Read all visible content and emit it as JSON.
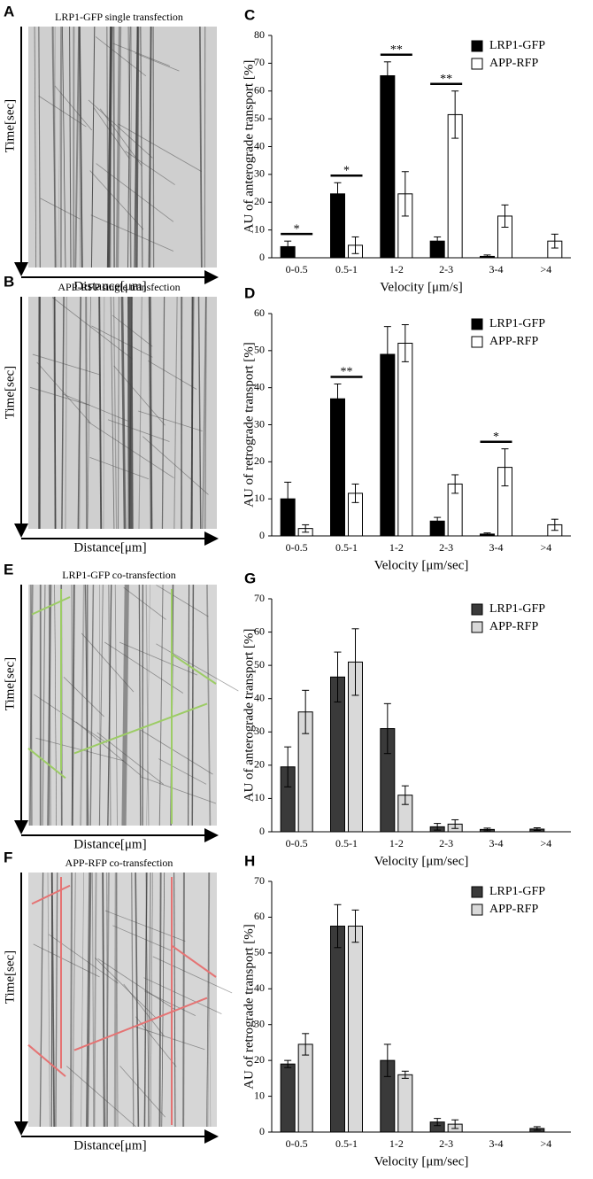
{
  "kymographs": [
    {
      "panel": "A",
      "title": "LRP1-GFP single transfection",
      "y_label": "Time[sec]",
      "x_label": "Distance[μm]"
    },
    {
      "panel": "B",
      "title": "APP-RFP single transfection",
      "y_label": "Time[sec]",
      "x_label": "Distance[μm]"
    },
    {
      "panel": "E",
      "title": "LRP1-GFP co-transfection",
      "y_label": "Time[sec]",
      "x_label": "Distance[μm]"
    },
    {
      "panel": "F",
      "title": "APP-RFP co-transfection",
      "y_label": "Time[sec]",
      "x_label": "Distance[μm]"
    }
  ],
  "chart_data": [
    {
      "type": "bar",
      "panel": "C",
      "y_label": "AU of anterograde transport [%]",
      "x_label": "Velocity [μm/s]",
      "categories": [
        "0-0.5",
        "0.5-1",
        "1-2",
        "2-3",
        "3-4",
        ">4"
      ],
      "series": [
        {
          "name": "LRP1-GFP",
          "color": "#000000",
          "values": [
            4,
            23,
            65.5,
            6,
            0.5,
            0
          ],
          "errors": [
            2,
            4,
            5,
            1.5,
            0.5,
            0
          ]
        },
        {
          "name": "APP-RFP",
          "color": "#ffffff",
          "values": [
            0,
            4.5,
            23,
            51.5,
            15,
            6
          ],
          "errors": [
            0,
            3,
            8,
            8.5,
            4,
            2.5
          ]
        }
      ],
      "annotations": [
        {
          "text": "*",
          "category": "0-0.5"
        },
        {
          "text": "*",
          "category": "0.5-1"
        },
        {
          "text": "**",
          "category": "1-2"
        },
        {
          "text": "**",
          "category": "2-3"
        }
      ],
      "ylim": [
        0,
        80
      ],
      "yticks": [
        0,
        10,
        20,
        30,
        40,
        50,
        60,
        70,
        80
      ],
      "legend": "top-right"
    },
    {
      "type": "bar",
      "panel": "D",
      "y_label": "AU of retrograde transport [%]",
      "x_label": "Velocity [μm/sec]",
      "categories": [
        "0-0.5",
        "0.5-1",
        "1-2",
        "2-3",
        "3-4",
        ">4"
      ],
      "series": [
        {
          "name": "LRP1-GFP",
          "color": "#000000",
          "values": [
            10,
            37,
            49,
            4,
            0.5,
            0
          ],
          "errors": [
            4.5,
            4,
            7.5,
            1,
            0.3,
            0
          ]
        },
        {
          "name": "APP-RFP",
          "color": "#ffffff",
          "values": [
            2,
            11.5,
            52,
            14,
            18.5,
            3
          ],
          "errors": [
            1,
            2.5,
            5,
            2.5,
            5,
            1.5
          ]
        }
      ],
      "annotations": [
        {
          "text": "**",
          "category": "0.5-1"
        },
        {
          "text": "*",
          "category": "3-4"
        }
      ],
      "ylim": [
        0,
        60
      ],
      "yticks": [
        0,
        10,
        20,
        30,
        40,
        50,
        60
      ],
      "legend": "top-right"
    },
    {
      "type": "bar",
      "panel": "G",
      "y_label": "AU of anterograde transport [%]",
      "x_label": "Velocity [μm/sec]",
      "categories": [
        "0-0.5",
        "0.5-1",
        "1-2",
        "2-3",
        "3-4",
        ">4"
      ],
      "series": [
        {
          "name": "LRP1-GFP",
          "color": "#3a3a3a",
          "values": [
            19.5,
            46.5,
            31,
            1.5,
            0.7,
            0.8
          ],
          "errors": [
            6,
            7.5,
            7.5,
            1,
            0.4,
            0.4
          ]
        },
        {
          "name": "APP-RFP",
          "color": "#d9d9d9",
          "values": [
            36,
            51,
            11,
            2.3,
            0,
            0
          ],
          "errors": [
            6.5,
            10,
            2.8,
            1.3,
            0,
            0
          ]
        }
      ],
      "annotations": [],
      "ylim": [
        0,
        70
      ],
      "yticks": [
        0,
        10,
        20,
        30,
        40,
        50,
        60,
        70
      ],
      "legend": "top-right"
    },
    {
      "type": "bar",
      "panel": "H",
      "y_label": "AU of retrograde transport [%]",
      "x_label": "Velocity [μm/sec]",
      "categories": [
        "0-0.5",
        "0.5-1",
        "1-2",
        "2-3",
        "3-4",
        ">4"
      ],
      "series": [
        {
          "name": "LRP1-GFP",
          "color": "#3a3a3a",
          "values": [
            19,
            57.5,
            20,
            2.8,
            0,
            1
          ],
          "errors": [
            1,
            6,
            4.5,
            1,
            0,
            0.5
          ]
        },
        {
          "name": "APP-RFP",
          "color": "#d9d9d9",
          "values": [
            24.5,
            57.5,
            16,
            2.2,
            0,
            0
          ],
          "errors": [
            3,
            4.5,
            1,
            1.2,
            0,
            0
          ]
        }
      ],
      "annotations": [],
      "ylim": [
        0,
        70
      ],
      "yticks": [
        0,
        10,
        20,
        30,
        40,
        50,
        60,
        70
      ],
      "legend": "top-right"
    }
  ]
}
